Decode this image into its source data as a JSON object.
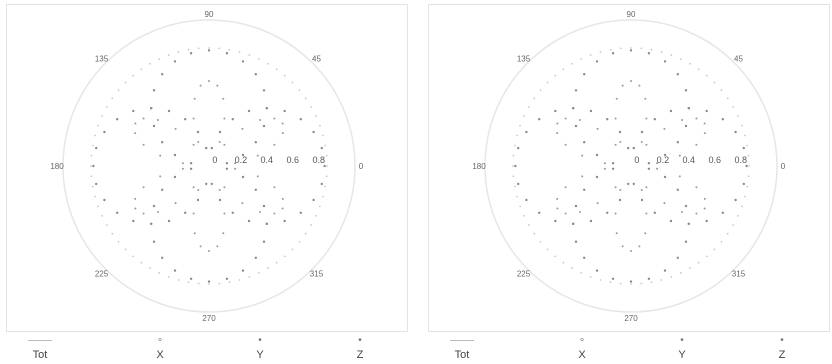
{
  "chart_data": [
    {
      "type": "polar",
      "panel": "left",
      "angle_ticks": [
        {
          "deg": 90,
          "label": "90"
        },
        {
          "deg": 135,
          "label": "135"
        },
        {
          "deg": 45,
          "label": "45"
        },
        {
          "deg": 180,
          "label": "180"
        },
        {
          "deg": 0,
          "label": "0"
        },
        {
          "deg": 225,
          "label": "225"
        },
        {
          "deg": 315,
          "label": "315"
        },
        {
          "deg": 270,
          "label": "270"
        }
      ],
      "radial_ticks": [
        "0",
        "0.2",
        "0.4",
        "0.6",
        "0.8"
      ],
      "rlim": [
        0,
        1
      ],
      "series": [
        {
          "name": "Tot",
          "pattern": "circle",
          "r": 1.0,
          "values": []
        },
        {
          "name": "X",
          "pattern": "dipole",
          "axis_deg": 0,
          "values": []
        },
        {
          "name": "Y",
          "pattern": "dipole",
          "axis_deg": 90,
          "values": []
        },
        {
          "name": "Z",
          "pattern": "rose",
          "petals": 6,
          "values": []
        }
      ],
      "legend_position": "bottom"
    },
    {
      "type": "polar",
      "panel": "right",
      "angle_ticks": [
        {
          "deg": 90,
          "label": "90"
        },
        {
          "deg": 135,
          "label": "135"
        },
        {
          "deg": 45,
          "label": "45"
        },
        {
          "deg": 180,
          "label": "180"
        },
        {
          "deg": 0,
          "label": "0"
        },
        {
          "deg": 225,
          "label": "225"
        },
        {
          "deg": 315,
          "label": "315"
        },
        {
          "deg": 270,
          "label": "270"
        }
      ],
      "radial_ticks": [
        "0",
        "0.2",
        "0.4",
        "0.6",
        "0.8"
      ],
      "rlim": [
        0,
        1
      ],
      "series": [
        {
          "name": "Tot",
          "pattern": "circle",
          "r": 1.0,
          "values": []
        },
        {
          "name": "X",
          "pattern": "dipole",
          "axis_deg": 0,
          "values": []
        },
        {
          "name": "Y",
          "pattern": "dipole",
          "axis_deg": 90,
          "values": []
        },
        {
          "name": "Z",
          "pattern": "rose",
          "petals": 6,
          "values": []
        }
      ],
      "legend_position": "bottom"
    }
  ],
  "legend": {
    "items": [
      {
        "label": "Tot",
        "marker": "line"
      },
      {
        "label": "X",
        "marker": "∘"
      },
      {
        "label": "Y",
        "marker": "•"
      },
      {
        "label": "Z",
        "marker": "•"
      }
    ]
  },
  "colors": {
    "axis": "#e6e6e6",
    "tot": "#c9c9c9",
    "dots": "#8a8a8a"
  }
}
